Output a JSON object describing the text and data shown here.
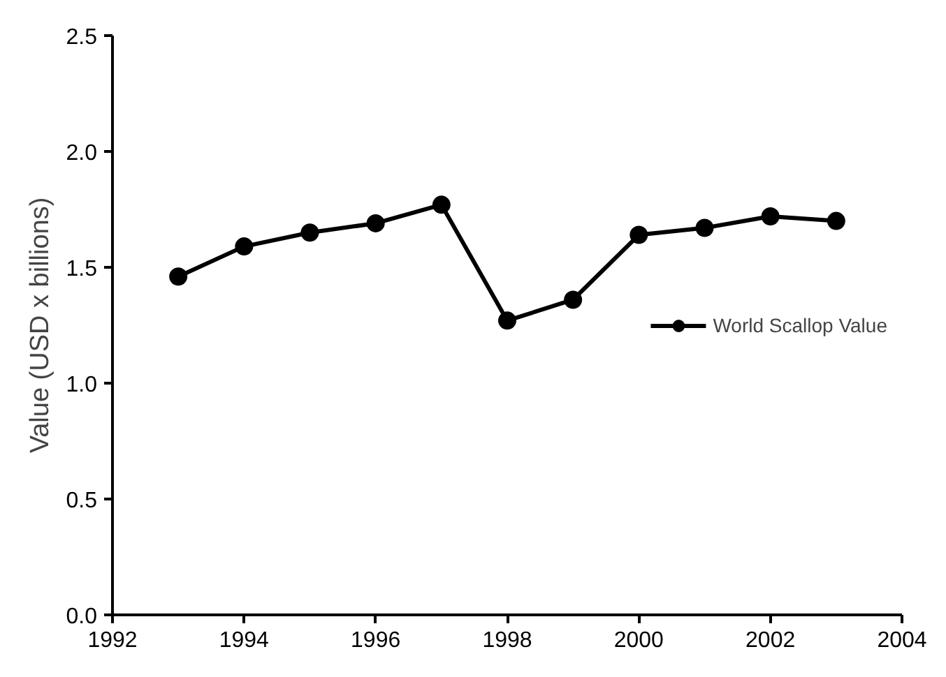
{
  "chart_data": {
    "type": "line",
    "ylabel": "Value (USD x billions)",
    "x": [
      1993,
      1994,
      1995,
      1996,
      1997,
      1998,
      1999,
      2000,
      2001,
      2002,
      2003
    ],
    "series": [
      {
        "name": "World Scallop Value",
        "color": "#000000",
        "values": [
          1.46,
          1.59,
          1.65,
          1.69,
          1.77,
          1.27,
          1.36,
          1.64,
          1.67,
          1.72,
          1.7
        ]
      }
    ],
    "xlim": [
      1992,
      2004
    ],
    "xticks": [
      1992,
      1994,
      1996,
      1998,
      2000,
      2002,
      2004
    ],
    "ylim": [
      0,
      2.5
    ],
    "yticks": [
      {
        "value": 0,
        "label": "0.0"
      },
      0.5,
      {
        "value": 1,
        "label": "1.0"
      },
      1.5,
      {
        "value": 2,
        "label": "2.0"
      },
      2.5
    ],
    "grid": false,
    "legend": "right",
    "marker": "circle",
    "line_style": "solid"
  }
}
